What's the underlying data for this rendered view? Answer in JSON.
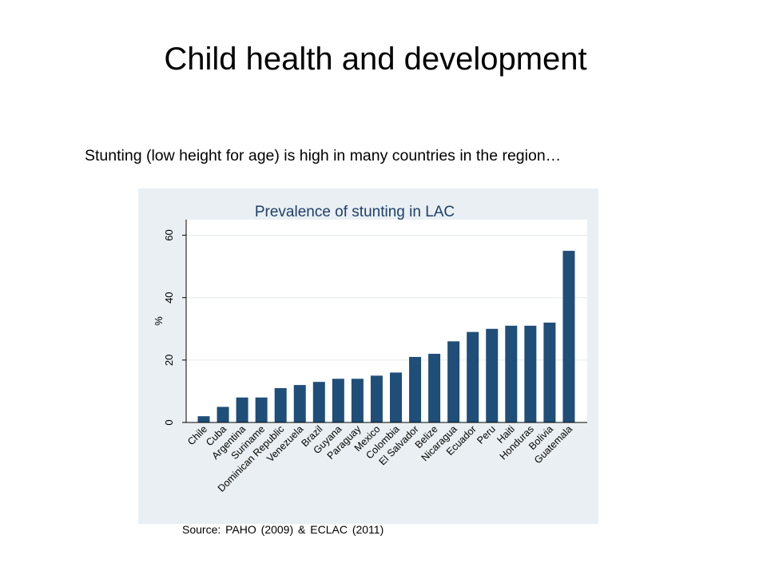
{
  "slide": {
    "title": "Child health and development",
    "subtitle": "Stunting (low height for age) is high in many countries in the region…",
    "source": "Source: PAHO (2009) & ECLAC (2011)"
  },
  "colors": {
    "bar": "#1f4e79",
    "panel_background": "#e9eff2",
    "plot_background": "#ffffff",
    "gridline": "#e6ebee",
    "chart_title": "#1f3f6b"
  },
  "chart_data": {
    "type": "bar",
    "title": "Prevalence of stunting in LAC",
    "xlabel": "",
    "ylabel": "%",
    "ylim": [
      0,
      65
    ],
    "yticks": [
      0,
      20,
      40,
      60
    ],
    "grid": true,
    "categories": [
      "Chile",
      "Cuba",
      "Argentina",
      "Suriname",
      "Dominican Republic",
      "Venezuela",
      "Brazil",
      "Guyana",
      "Paraguay",
      "Mexico",
      "Colombia",
      "El Salvador",
      "Belize",
      "Nicaragua",
      "Ecuador",
      "Peru",
      "Haiti",
      "Honduras",
      "Bolivia",
      "Guatemala"
    ],
    "values": [
      2,
      5,
      8,
      8,
      11,
      12,
      13,
      14,
      14,
      15,
      16,
      21,
      22,
      26,
      29,
      30,
      31,
      31,
      32,
      55
    ]
  }
}
